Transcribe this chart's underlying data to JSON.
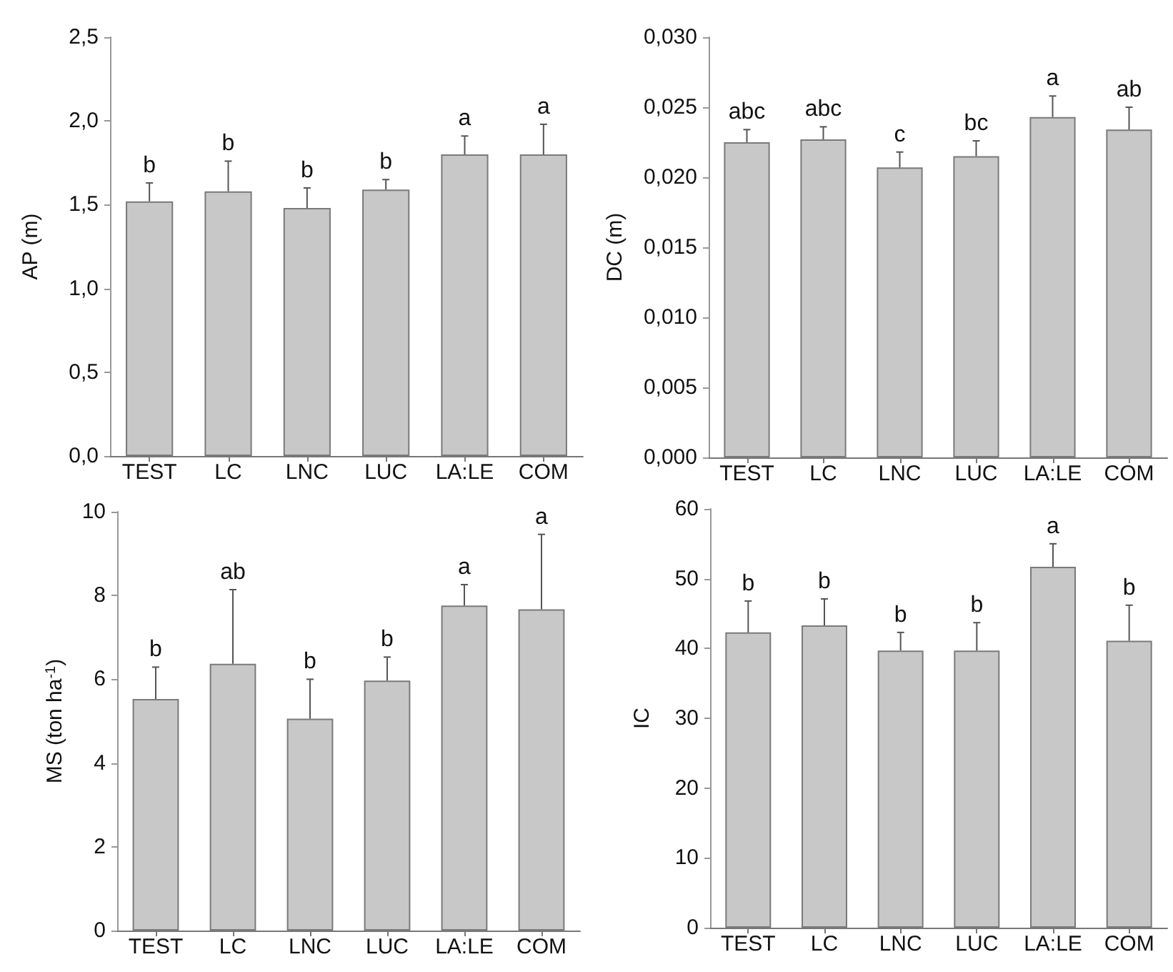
{
  "chart_data": [
    {
      "type": "bar",
      "ylabel": "AP (m)",
      "categories": [
        "TEST",
        "LC",
        "LNC",
        "LUC",
        "LA:LE",
        "COM"
      ],
      "series": [
        {
          "color": "#c8c8c8",
          "values": [
            1.52,
            1.58,
            1.48,
            1.59,
            1.8,
            1.8
          ],
          "errors": [
            [
              1.52,
              1.63
            ],
            [
              1.58,
              1.76
            ],
            [
              1.48,
              1.6
            ],
            [
              1.59,
              1.65
            ],
            [
              1.8,
              1.91
            ],
            [
              1.8,
              1.98
            ]
          ]
        }
      ],
      "annotations": [
        {
          "text": "b",
          "x": "TEST",
          "y": 1.63
        },
        {
          "text": "b",
          "x": "LC",
          "y": 1.76
        },
        {
          "text": "b",
          "x": "LNC",
          "y": 1.6
        },
        {
          "text": "b",
          "x": "LUC",
          "y": 1.65
        },
        {
          "text": "a",
          "x": "LA:LE",
          "y": 1.91
        },
        {
          "text": "a",
          "x": "COM",
          "y": 1.98
        }
      ],
      "ylim": [
        0,
        2.5
      ],
      "yticks": [
        {
          "value": 0,
          "label": "0,0"
        },
        {
          "value": 0.5,
          "label": "0,5"
        },
        {
          "value": 1,
          "label": "1,0"
        },
        {
          "value": 1.5,
          "label": "1,5"
        },
        {
          "value": 2,
          "label": "2,0"
        },
        {
          "value": 2.5,
          "label": "2,5"
        }
      ],
      "grid": false
    },
    {
      "type": "bar",
      "ylabel": "DC (m)",
      "categories": [
        "TEST",
        "LC",
        "LNC",
        "LUC",
        "LA:LE",
        "COM"
      ],
      "series": [
        {
          "color": "#c8c8c8",
          "values": [
            0.0225,
            0.0227,
            0.0207,
            0.0215,
            0.0243,
            0.0234
          ],
          "errors": [
            [
              0.0225,
              0.0234
            ],
            [
              0.0227,
              0.0236
            ],
            [
              0.0207,
              0.0218
            ],
            [
              0.0215,
              0.0226
            ],
            [
              0.0243,
              0.0258
            ],
            [
              0.0234,
              0.025
            ]
          ]
        }
      ],
      "annotations": [
        {
          "text": "abc",
          "x": "TEST",
          "y": 0.0234
        },
        {
          "text": "abc",
          "x": "LC",
          "y": 0.0236
        },
        {
          "text": "c",
          "x": "LNC",
          "y": 0.0218
        },
        {
          "text": "bc",
          "x": "LUC",
          "y": 0.0226
        },
        {
          "text": "a",
          "x": "LA:LE",
          "y": 0.0258
        },
        {
          "text": "ab",
          "x": "COM",
          "y": 0.025
        }
      ],
      "ylim": [
        0,
        0.03
      ],
      "yticks": [
        {
          "value": 0,
          "label": "0,000"
        },
        {
          "value": 0.005,
          "label": "0,005"
        },
        {
          "value": 0.01,
          "label": "0,010"
        },
        {
          "value": 0.015,
          "label": "0,015"
        },
        {
          "value": 0.02,
          "label": "0,020"
        },
        {
          "value": 0.025,
          "label": "0,025"
        },
        {
          "value": 0.03,
          "label": "0,030"
        }
      ],
      "grid": false
    },
    {
      "type": "bar",
      "ylabel": "MS (ton ha$^{-1}$)",
      "categories": [
        "TEST",
        "LC",
        "LNC",
        "LUC",
        "LA:LE",
        "COM"
      ],
      "series": [
        {
          "color": "#c8c8c8",
          "values": [
            5.53,
            6.37,
            5.06,
            5.97,
            7.76,
            7.67
          ],
          "errors": [
            [
              5.53,
              6.29
            ],
            [
              6.37,
              8.14
            ],
            [
              5.06,
              6.0
            ],
            [
              5.97,
              6.53
            ],
            [
              7.76,
              8.26
            ],
            [
              7.67,
              9.46
            ]
          ]
        }
      ],
      "annotations": [
        {
          "text": "b",
          "x": "TEST",
          "y": 6.29
        },
        {
          "text": "ab",
          "x": "LC",
          "y": 8.14
        },
        {
          "text": "b",
          "x": "LNC",
          "y": 6.0
        },
        {
          "text": "b",
          "x": "LUC",
          "y": 6.53
        },
        {
          "text": "a",
          "x": "LA:LE",
          "y": 8.26
        },
        {
          "text": "a",
          "x": "COM",
          "y": 9.46
        }
      ],
      "ylim": [
        0,
        10
      ],
      "yticks": [
        0,
        2,
        4,
        6,
        8,
        10
      ],
      "grid": false
    },
    {
      "type": "bar",
      "ylabel": "IC",
      "categories": [
        "TEST",
        "LC",
        "LNC",
        "LUC",
        "LA:LE",
        "COM"
      ],
      "series": [
        {
          "color": "#c8c8c8",
          "values": [
            42.3,
            43.3,
            39.7,
            39.7,
            51.7,
            41.1
          ],
          "errors": [
            [
              42.3,
              46.8
            ],
            [
              43.3,
              47.1
            ],
            [
              39.7,
              42.3
            ],
            [
              39.7,
              43.7
            ],
            [
              51.7,
              55.0
            ],
            [
              41.1,
              46.2
            ]
          ]
        }
      ],
      "annotations": [
        {
          "text": "b",
          "x": "TEST",
          "y": 46.8
        },
        {
          "text": "b",
          "x": "LC",
          "y": 47.1
        },
        {
          "text": "b",
          "x": "LNC",
          "y": 42.3
        },
        {
          "text": "b",
          "x": "LUC",
          "y": 43.7
        },
        {
          "text": "a",
          "x": "LA:LE",
          "y": 55.0
        },
        {
          "text": "b",
          "x": "COM",
          "y": 46.2
        }
      ],
      "ylim": [
        0,
        60
      ],
      "yticks": [
        0,
        10,
        20,
        30,
        40,
        50,
        60
      ],
      "grid": false
    }
  ]
}
